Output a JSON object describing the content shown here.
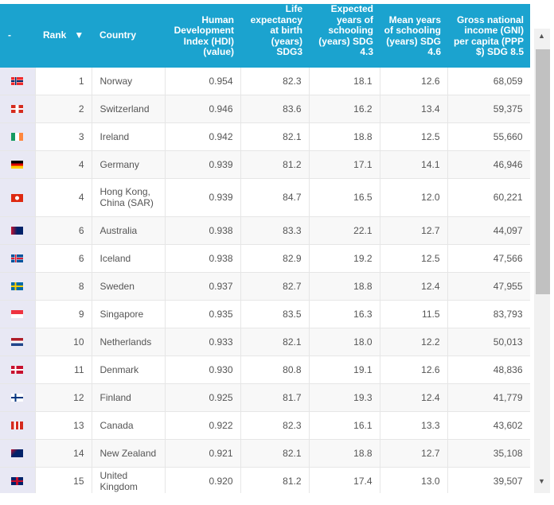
{
  "headers": {
    "flag": "-",
    "rank": "Rank",
    "sort_icon": "▼",
    "country": "Country",
    "hdi": "Human Development Index (HDI) (value)",
    "life": "Life expectancy at birth (years) SDG3",
    "expected": "Expected years of schooling (years) SDG 4.3",
    "mean": "Mean years of schooling (years) SDG 4.6",
    "gni": "Gross national income (GNI) per capita (PPP $) SDG 8.5"
  },
  "rows": [
    {
      "flag": "norway",
      "rank": "1",
      "country": "Norway",
      "hdi": "0.954",
      "life": "82.3",
      "expected": "18.1",
      "mean": "12.6",
      "gni": "68,059"
    },
    {
      "flag": "switzerland",
      "rank": "2",
      "country": "Switzerland",
      "hdi": "0.946",
      "life": "83.6",
      "expected": "16.2",
      "mean": "13.4",
      "gni": "59,375"
    },
    {
      "flag": "ireland",
      "rank": "3",
      "country": "Ireland",
      "hdi": "0.942",
      "life": "82.1",
      "expected": "18.8",
      "mean": "12.5",
      "gni": "55,660"
    },
    {
      "flag": "germany",
      "rank": "4",
      "country": "Germany",
      "hdi": "0.939",
      "life": "81.2",
      "expected": "17.1",
      "mean": "14.1",
      "gni": "46,946"
    },
    {
      "flag": "hong-kong",
      "rank": "4",
      "country": "Hong Kong, China (SAR)",
      "hdi": "0.939",
      "life": "84.7",
      "expected": "16.5",
      "mean": "12.0",
      "gni": "60,221"
    },
    {
      "flag": "australia",
      "rank": "6",
      "country": "Australia",
      "hdi": "0.938",
      "life": "83.3",
      "expected": "22.1",
      "mean": "12.7",
      "gni": "44,097"
    },
    {
      "flag": "iceland",
      "rank": "6",
      "country": "Iceland",
      "hdi": "0.938",
      "life": "82.9",
      "expected": "19.2",
      "mean": "12.5",
      "gni": "47,566"
    },
    {
      "flag": "sweden",
      "rank": "8",
      "country": "Sweden",
      "hdi": "0.937",
      "life": "82.7",
      "expected": "18.8",
      "mean": "12.4",
      "gni": "47,955"
    },
    {
      "flag": "singapore",
      "rank": "9",
      "country": "Singapore",
      "hdi": "0.935",
      "life": "83.5",
      "expected": "16.3",
      "mean": "11.5",
      "gni": "83,793"
    },
    {
      "flag": "netherlands",
      "rank": "10",
      "country": "Netherlands",
      "hdi": "0.933",
      "life": "82.1",
      "expected": "18.0",
      "mean": "12.2",
      "gni": "50,013"
    },
    {
      "flag": "denmark",
      "rank": "11",
      "country": "Denmark",
      "hdi": "0.930",
      "life": "80.8",
      "expected": "19.1",
      "mean": "12.6",
      "gni": "48,836"
    },
    {
      "flag": "finland",
      "rank": "12",
      "country": "Finland",
      "hdi": "0.925",
      "life": "81.7",
      "expected": "19.3",
      "mean": "12.4",
      "gni": "41,779"
    },
    {
      "flag": "canada",
      "rank": "13",
      "country": "Canada",
      "hdi": "0.922",
      "life": "82.3",
      "expected": "16.1",
      "mean": "13.3",
      "gni": "43,602"
    },
    {
      "flag": "new-zealand",
      "rank": "14",
      "country": "New Zealand",
      "hdi": "0.921",
      "life": "82.1",
      "expected": "18.8",
      "mean": "12.7",
      "gni": "35,108"
    },
    {
      "flag": "united-kingdom",
      "rank": "15",
      "country": "United Kingdom",
      "hdi": "0.920",
      "life": "81.2",
      "expected": "17.4",
      "mean": "13.0",
      "gni": "39,507"
    }
  ],
  "colors": {
    "header": "#1ba3cf",
    "flag_cell": "#e8e8f4"
  },
  "scrollbar": {
    "up": "▲",
    "down": "▼"
  }
}
